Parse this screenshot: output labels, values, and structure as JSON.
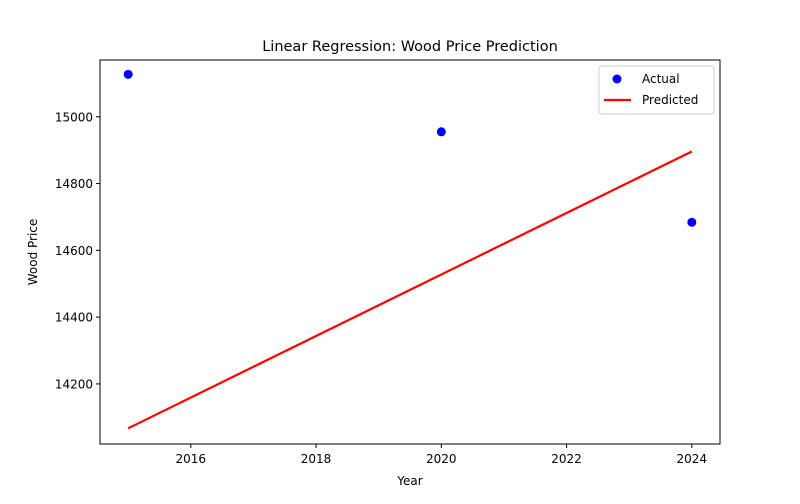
{
  "chart_data": {
    "type": "scatter",
    "title": "Linear Regression: Wood Price Prediction",
    "xlabel": "Year",
    "ylabel": "Wood Price",
    "xlim": [
      2014.55,
      2024.45
    ],
    "ylim": [
      14020,
      15170
    ],
    "xticks": [
      2016,
      2018,
      2020,
      2022,
      2024
    ],
    "yticks": [
      14200,
      14400,
      14600,
      14800,
      15000
    ],
    "grid": false,
    "legend_position": "upper right",
    "series": [
      {
        "name": "Actual",
        "kind": "scatter",
        "color": "#0000ff",
        "points": [
          {
            "x": 2015,
            "y": 15127
          },
          {
            "x": 2020,
            "y": 14955
          },
          {
            "x": 2024,
            "y": 14684
          }
        ]
      },
      {
        "name": "Predicted",
        "kind": "line",
        "color": "#ff0000",
        "points": [
          {
            "x": 2015,
            "y": 14067
          },
          {
            "x": 2024,
            "y": 14896
          }
        ]
      }
    ]
  }
}
